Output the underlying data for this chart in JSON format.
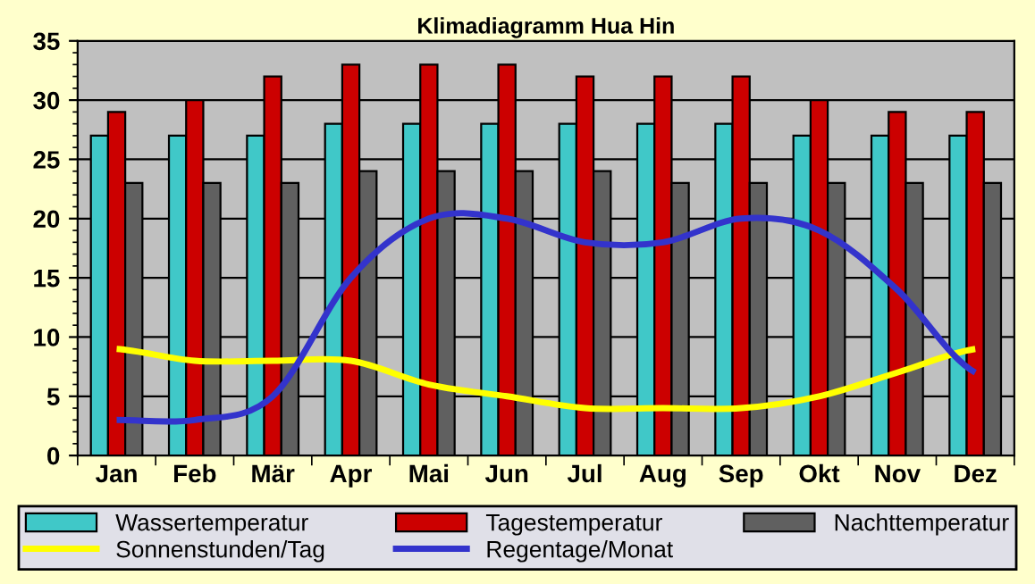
{
  "chart_data": {
    "type": "bar",
    "title": "Klimadiagramm Hua Hin",
    "categories": [
      "Jan",
      "Feb",
      "Mär",
      "Apr",
      "Mai",
      "Jun",
      "Jul",
      "Aug",
      "Sep",
      "Okt",
      "Nov",
      "Dez"
    ],
    "series": [
      {
        "name": "Wassertemperatur",
        "color": "#40c8c8",
        "values": [
          27,
          27,
          27,
          28,
          28,
          28,
          28,
          28,
          28,
          27,
          27,
          27
        ]
      },
      {
        "name": "Tagestemperatur",
        "color": "#cc0000",
        "values": [
          29,
          30,
          32,
          33,
          33,
          33,
          32,
          32,
          32,
          30,
          29,
          29
        ]
      },
      {
        "name": "Nachttemperatur",
        "color": "#606060",
        "values": [
          23,
          23,
          23,
          24,
          24,
          24,
          24,
          23,
          23,
          23,
          23,
          23
        ]
      },
      {
        "name": "Sonnenstunden/Tag",
        "type": "line",
        "color": "#ffff00",
        "values": [
          9,
          8,
          8,
          8,
          6,
          5,
          4,
          4,
          4,
          5,
          7,
          9
        ]
      },
      {
        "name": "Regentage/Monat",
        "type": "line",
        "color": "#3333cc",
        "values": [
          3,
          3,
          5,
          15,
          20,
          20,
          18,
          18,
          20,
          19,
          14,
          7
        ]
      }
    ],
    "ylim": [
      0,
      35
    ],
    "yticks": [
      0,
      5,
      10,
      15,
      20,
      25,
      30,
      35
    ],
    "grid": "y",
    "legend": "bottom",
    "marker": "none"
  }
}
